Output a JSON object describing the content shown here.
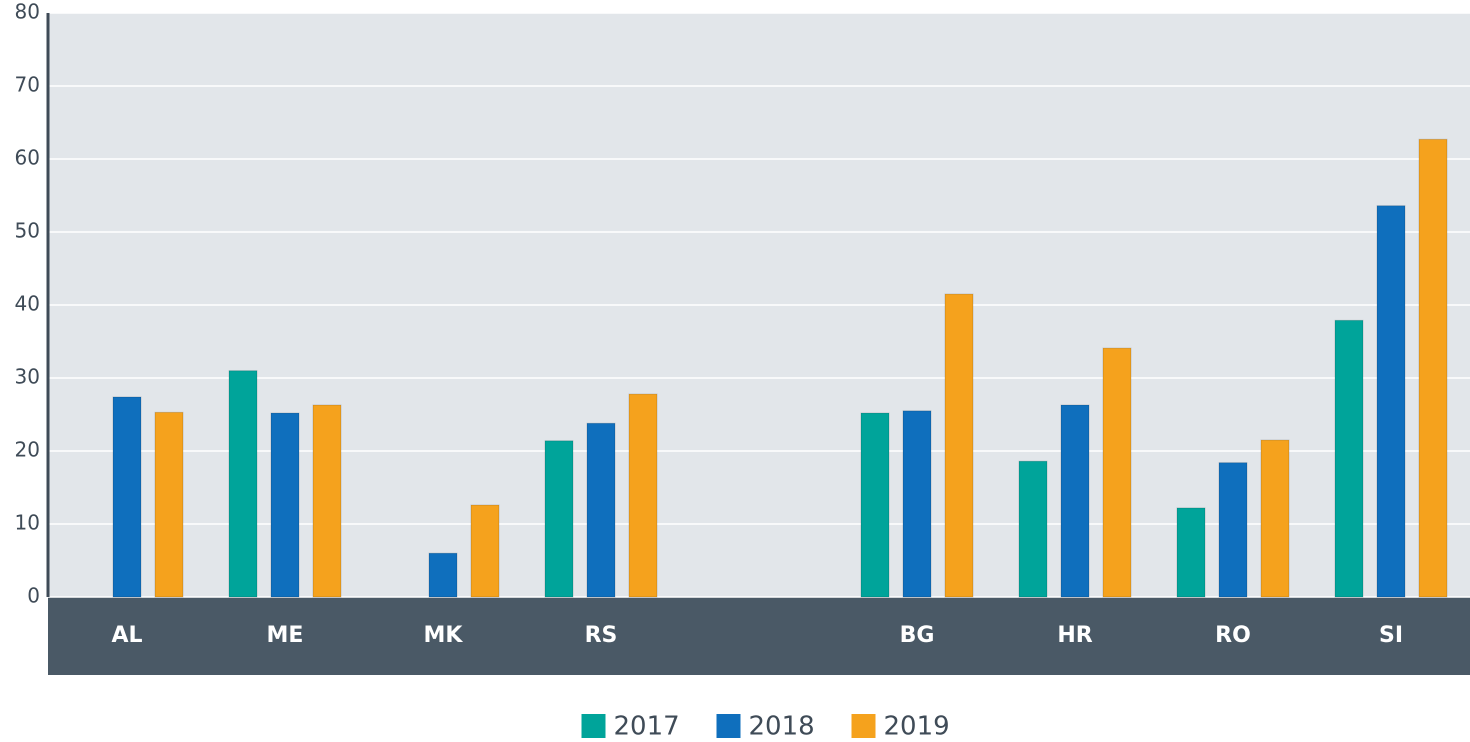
{
  "chart_data": {
    "type": "bar",
    "categories": [
      "AL",
      "ME",
      "MK",
      "RS",
      null,
      "BG",
      "HR",
      "RO",
      "SI"
    ],
    "series": [
      {
        "name": "2017",
        "color": "#00a49a",
        "values": [
          null,
          31.0,
          null,
          21.4,
          null,
          25.2,
          18.6,
          12.2,
          37.9
        ]
      },
      {
        "name": "2018",
        "color": "#0f6fbd",
        "values": [
          27.4,
          25.2,
          6.0,
          23.8,
          null,
          25.5,
          26.3,
          18.4,
          53.6
        ]
      },
      {
        "name": "2019",
        "color": "#f5a21d",
        "values": [
          25.3,
          26.3,
          12.6,
          27.8,
          null,
          41.5,
          34.1,
          21.5,
          62.7
        ]
      }
    ],
    "ylim": [
      0,
      80
    ],
    "yticks": [
      0,
      10,
      20,
      30,
      40,
      50,
      60,
      70,
      80
    ],
    "grid": true,
    "legend": "bottom"
  }
}
